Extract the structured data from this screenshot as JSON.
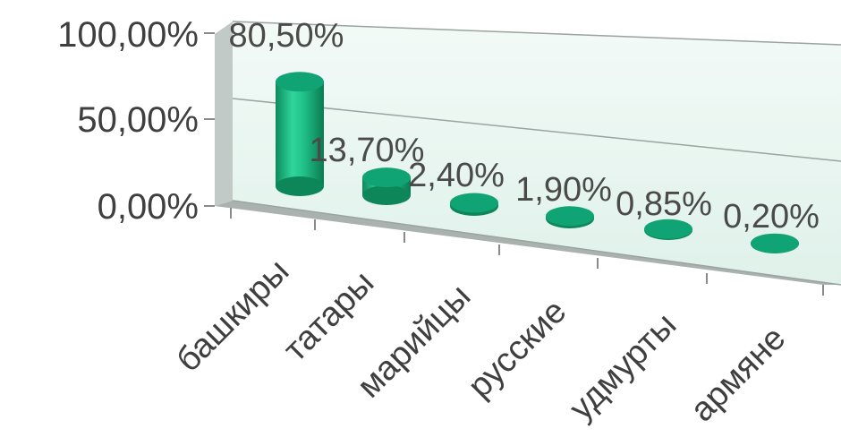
{
  "chart_data": {
    "type": "bar",
    "style": "3d-cylinder",
    "categories": [
      "башкиры",
      "татары",
      "марийцы",
      "русские",
      "удмурты",
      "армяне"
    ],
    "values": [
      80.5,
      13.7,
      2.4,
      1.9,
      0.85,
      0.2
    ],
    "data_labels": [
      "80,50%",
      "13,70%",
      "2,40%",
      "1,90%",
      "0,85%",
      "0,20%"
    ],
    "y_ticks": [
      "0,00%",
      "50,00%",
      "100,00%"
    ],
    "ylim": [
      0,
      100
    ],
    "grid": true,
    "legend": "none",
    "colors": {
      "bar": "#1fb984",
      "bar_dark": "#0f8a5e",
      "bar_top": "#10a474",
      "wall": "#bfc7c4",
      "floor": "#a9b0ad",
      "back_wall": "#e9f6f1"
    }
  }
}
